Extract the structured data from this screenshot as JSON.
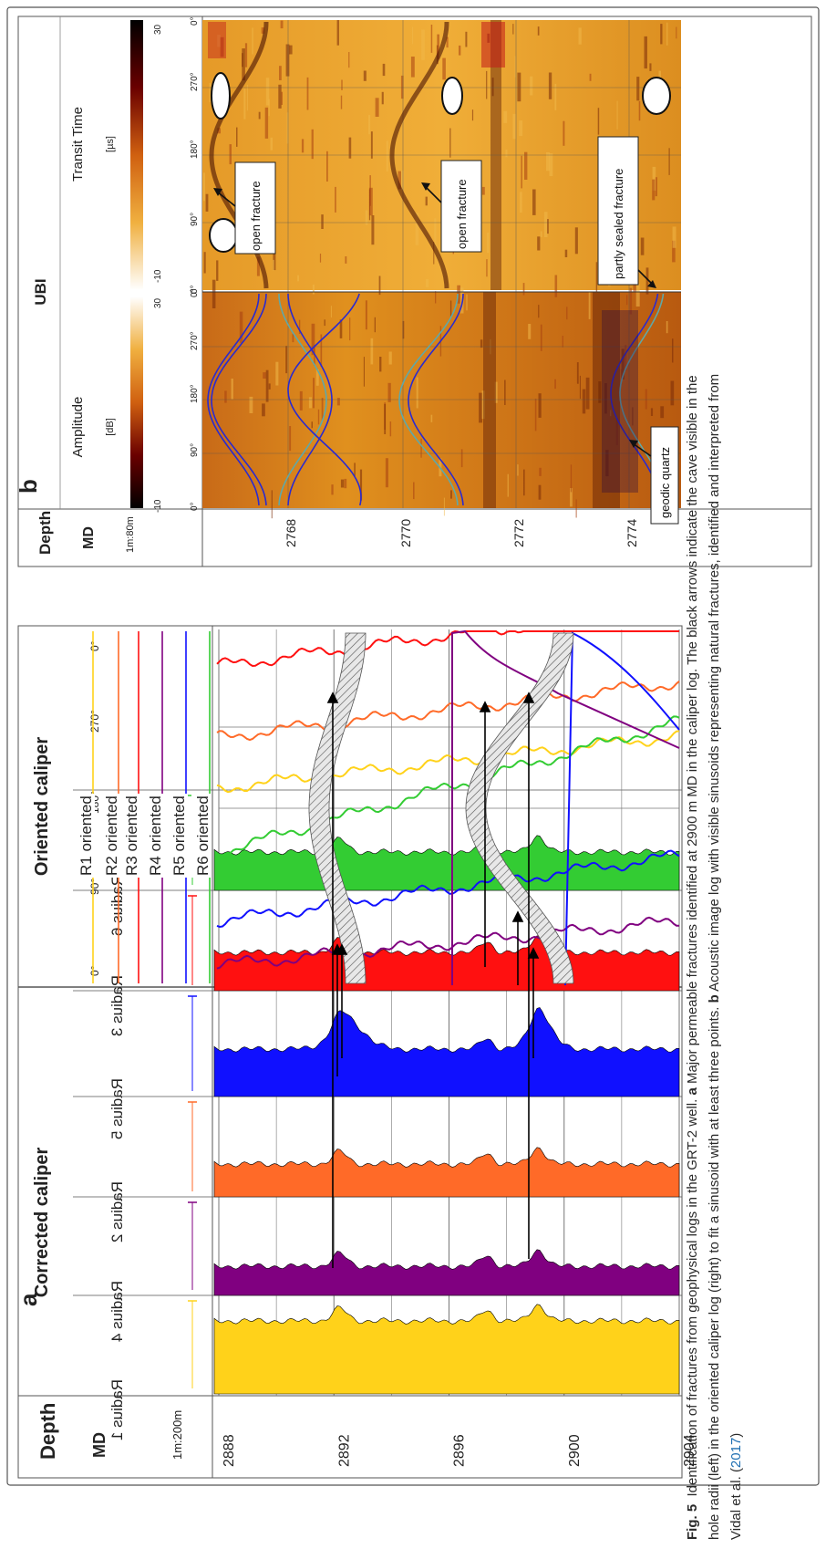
{
  "panel_a": {
    "label": "a",
    "depth_header": "Depth",
    "md_header": "MD",
    "scale": "1m:200m",
    "depth_ticks": [
      "2888",
      "2892",
      "2896",
      "2900",
      "2904"
    ],
    "corrected_caliper_title": "Corrected caliper",
    "radius_tracks": [
      {
        "label": "Radius 1",
        "color": "#ffd21a"
      },
      {
        "label": "Radius 4",
        "color": "#800080"
      },
      {
        "label": "Radius 2",
        "color": "#ff6a28"
      },
      {
        "label": "Radius 5",
        "color": "#1010ff"
      },
      {
        "label": "Radius 3",
        "color": "#ff1010"
      },
      {
        "label": "Radius 6",
        "color": "#33cc33"
      }
    ],
    "oriented_caliper_title": "Oriented caliper",
    "azimuth_ticks": [
      "0°",
      "90°",
      "180°",
      "270°",
      "0°"
    ],
    "oriented_legend": [
      {
        "label": "R1 oriented",
        "color": "#ffd21a"
      },
      {
        "label": "R2 oriented",
        "color": "#ff6a28"
      },
      {
        "label": "R3 oriented",
        "color": "#ff1010"
      },
      {
        "label": "R4 oriented",
        "color": "#800080"
      },
      {
        "label": "R5 oriented",
        "color": "#1010ff"
      },
      {
        "label": "R6 oriented",
        "color": "#33cc33"
      }
    ]
  },
  "panel_b": {
    "label": "b",
    "depth_header": "Depth",
    "md_header": "MD",
    "scale": "1m:80m",
    "depth_ticks": [
      "2768",
      "2770",
      "2772",
      "2774"
    ],
    "ubi_title": "UBI",
    "amplitude_title": "Amplitude",
    "amplitude_unit": "[dB]",
    "amplitude_scale": [
      "-10",
      "30"
    ],
    "transit_title": "Transit Time",
    "transit_unit": "[µs]",
    "transit_scale": [
      "-10",
      "30"
    ],
    "azimuth_ticks": [
      "0°",
      "90°",
      "180°",
      "270°",
      "0°"
    ],
    "annotations": [
      "open fracture",
      "open fracture",
      "partly sealed fracture",
      "geodic quartz"
    ]
  },
  "caption": {
    "fig_label": "Fig. 5",
    "line1_pre": "Identification of fractures from geophysical logs in the GRT-2 well. ",
    "line1_a": "a",
    "line1_post": " Major permeable fractures identified at 2900 m MD in the caliper log. The black arrows indicate the cave visible in the",
    "line2_pre": "hole radii (left) in the oriented caliper log (right) to fit a sinusoid with at least three points. ",
    "line2_b": "b",
    "line2_post": " Acoustic image log with visible sinusoids representing natural fractures, identified and interpreted from",
    "line3_pre": "Vidal et al. (",
    "line3_ref": "2017",
    "line3_post": ")"
  }
}
